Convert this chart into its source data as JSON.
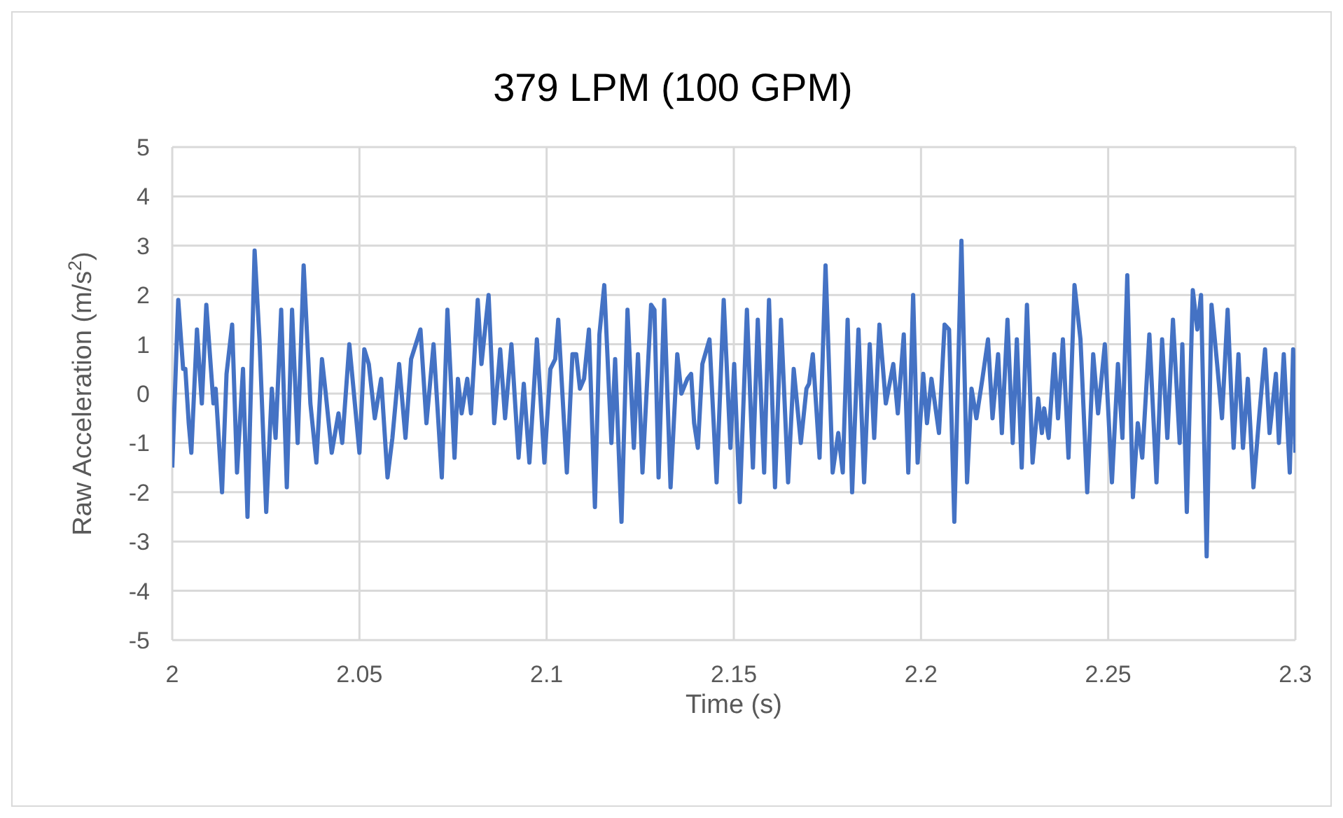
{
  "chart_data": {
    "type": "line",
    "title": "379 LPM (100 GPM)",
    "xlabel": "Time (s)",
    "ylabel": "Raw Acceleration (m/s$^{2}$)",
    "xlim": [
      2,
      2.3
    ],
    "xticks": [
      2,
      2.05,
      2.1,
      2.15,
      2.2,
      2.25,
      2.3
    ],
    "ylim": [
      -5,
      5
    ],
    "yticks": [
      -5,
      -4,
      -3,
      -2,
      -1,
      0,
      1,
      2,
      3,
      4,
      5
    ],
    "grid": true,
    "series": [
      {
        "color": "#4472c4",
        "x": [
          2.0,
          2.0016,
          2.0029,
          2.0035,
          2.0044,
          2.0051,
          2.0066,
          2.0079,
          2.0091,
          2.011,
          2.0116,
          2.0133,
          2.0145,
          2.016,
          2.0173,
          2.0189,
          2.0201,
          2.022,
          2.0233,
          2.0251,
          2.0266,
          2.0276,
          2.0291,
          2.0306,
          2.032,
          2.0335,
          2.0351,
          2.0369,
          2.0385,
          2.04,
          2.041,
          2.0426,
          2.0444,
          2.0454,
          2.0473,
          2.05,
          2.0513,
          2.0525,
          2.0541,
          2.0558,
          2.0575,
          2.0588,
          2.0606,
          2.0623,
          2.0638,
          2.0663,
          2.0679,
          2.0698,
          2.072,
          2.0735,
          2.0754,
          2.0763,
          2.0773,
          2.0788,
          2.0798,
          2.0816,
          2.0826,
          2.0845,
          2.086,
          2.0876,
          2.0889,
          2.0906,
          2.0925,
          2.0939,
          2.0954,
          2.0974,
          2.0994,
          2.101,
          2.1023,
          2.1031,
          2.1054,
          2.1069,
          2.1079,
          2.1089,
          2.11,
          2.1113,
          2.1129,
          2.1141,
          2.1154,
          2.1173,
          2.1183,
          2.12,
          2.1216,
          2.1233,
          2.1244,
          2.1256,
          2.1279,
          2.1288,
          2.1299,
          2.1314,
          2.1331,
          2.1349,
          2.136,
          2.1376,
          2.1386,
          2.1394,
          2.1404,
          2.1416,
          2.1435,
          2.1454,
          2.1473,
          2.1491,
          2.1501,
          2.1516,
          2.1535,
          2.1551,
          2.1564,
          2.1581,
          2.1594,
          2.161,
          2.1626,
          2.1645,
          2.166,
          2.1679,
          2.1694,
          2.1701,
          2.1711,
          2.1729,
          2.1745,
          2.1764,
          2.1779,
          2.1791,
          2.1804,
          2.1816,
          2.1833,
          2.1848,
          2.1863,
          2.1875,
          2.1889,
          2.1906,
          2.1926,
          2.1938,
          2.1954,
          2.1966,
          2.1979,
          2.1991,
          2.2006,
          2.2016,
          2.2028,
          2.2048,
          2.2063,
          2.2075,
          2.2089,
          2.2108,
          2.2123,
          2.2135,
          2.2148,
          2.2164,
          2.2179,
          2.2191,
          2.2206,
          2.2216,
          2.2231,
          2.2245,
          2.2256,
          2.2269,
          2.2283,
          2.2298,
          2.2313,
          2.2323,
          2.2329,
          2.2341,
          2.2356,
          2.2366,
          2.2379,
          2.2394,
          2.241,
          2.2426,
          2.2444,
          2.246,
          2.2473,
          2.2491,
          2.251,
          2.2526,
          2.2538,
          2.2551,
          2.2566,
          2.2579,
          2.2591,
          2.261,
          2.2629,
          2.2644,
          2.2658,
          2.2673,
          2.2691,
          2.2698,
          2.271,
          2.2726,
          2.2738,
          2.2748,
          2.2763,
          2.2776,
          2.2791,
          2.2804,
          2.2819,
          2.2835,
          2.2848,
          2.286,
          2.2873,
          2.2888,
          2.2904,
          2.2919,
          2.2931,
          2.2948,
          2.2956,
          2.2969,
          2.2985,
          2.2994,
          2.3
        ],
        "values": [
          -1.5,
          1.9,
          0.5,
          0.5,
          -0.6,
          -1.2,
          1.3,
          -0.2,
          1.8,
          -0.2,
          0.1,
          -2.0,
          0.4,
          1.4,
          -1.6,
          0.5,
          -2.5,
          2.9,
          1.1,
          -2.4,
          0.1,
          -0.9,
          1.7,
          -1.9,
          1.7,
          -1.0,
          2.6,
          -0.2,
          -1.4,
          0.7,
          0.0,
          -1.2,
          -0.4,
          -1.0,
          1.0,
          -1.2,
          0.9,
          0.6,
          -0.5,
          0.3,
          -1.7,
          -0.9,
          0.6,
          -0.9,
          0.7,
          1.3,
          -0.6,
          1.0,
          -1.7,
          1.7,
          -1.3,
          0.3,
          -0.4,
          0.3,
          -0.4,
          1.9,
          0.6,
          2.0,
          -0.6,
          0.9,
          -0.5,
          1.0,
          -1.3,
          0.2,
          -1.4,
          1.1,
          -1.4,
          0.5,
          0.7,
          1.5,
          -1.6,
          0.8,
          0.8,
          0.1,
          0.3,
          1.3,
          -2.3,
          1.2,
          2.2,
          -1.0,
          0.7,
          -2.6,
          1.7,
          -1.1,
          0.8,
          -1.6,
          1.8,
          1.7,
          -1.7,
          1.9,
          -1.9,
          0.8,
          0.0,
          0.3,
          0.4,
          -0.6,
          -1.1,
          0.6,
          1.1,
          -1.8,
          1.9,
          -1.1,
          0.6,
          -2.2,
          1.7,
          -1.5,
          1.5,
          -1.6,
          1.9,
          -1.9,
          1.5,
          -1.8,
          0.5,
          -1.0,
          0.1,
          0.2,
          0.8,
          -1.3,
          2.6,
          -1.6,
          -0.8,
          -1.6,
          1.5,
          -2.0,
          1.3,
          -1.8,
          1.0,
          -0.9,
          1.4,
          -0.2,
          0.6,
          -0.4,
          1.2,
          -1.6,
          2.0,
          -1.4,
          0.4,
          -0.6,
          0.3,
          -0.8,
          1.4,
          1.3,
          -2.6,
          3.1,
          -1.8,
          0.1,
          -0.5,
          0.3,
          1.1,
          -0.5,
          0.8,
          -0.8,
          1.5,
          -1.0,
          1.1,
          -1.5,
          1.8,
          -1.4,
          -0.1,
          -0.8,
          -0.3,
          -0.9,
          0.8,
          -0.5,
          1.1,
          -1.3,
          2.2,
          1.1,
          -2.0,
          0.8,
          -0.4,
          1.0,
          -1.8,
          0.6,
          -0.9,
          2.4,
          -2.1,
          -0.6,
          -1.3,
          1.2,
          -1.8,
          1.1,
          -0.9,
          1.5,
          -1.0,
          1.0,
          -2.4,
          2.1,
          1.3,
          2.0,
          -3.3,
          1.8,
          0.6,
          -0.5,
          1.7,
          -1.1,
          0.8,
          -1.1,
          0.3,
          -1.9,
          -0.4,
          0.9,
          -0.8,
          0.4,
          -1.0,
          0.8,
          -1.6,
          0.9,
          -1.2
        ]
      }
    ]
  }
}
